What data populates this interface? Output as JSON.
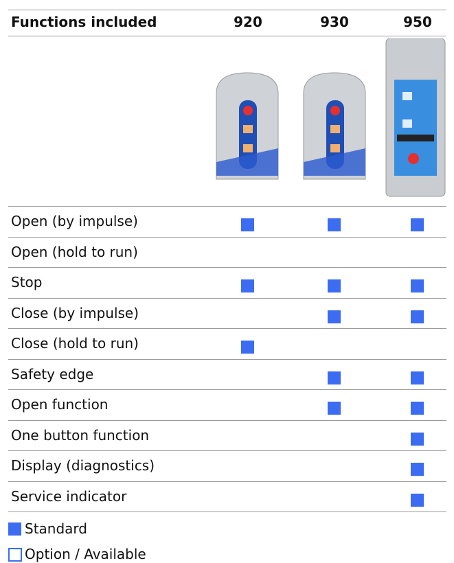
{
  "header": {
    "title": "Functions included",
    "models": [
      "920",
      "930",
      "950"
    ]
  },
  "rows": [
    {
      "label": "Open (by impulse)",
      "standard": [
        true,
        true,
        true
      ]
    },
    {
      "label": "Open (hold to run)",
      "standard": [
        false,
        false,
        false
      ]
    },
    {
      "label": "Stop",
      "standard": [
        true,
        true,
        true
      ]
    },
    {
      "label": "Close (by impulse)",
      "standard": [
        false,
        true,
        true
      ]
    },
    {
      "label": "Close (hold to run)",
      "standard": [
        true,
        false,
        false
      ]
    },
    {
      "label": "Safety edge",
      "standard": [
        false,
        true,
        true
      ]
    },
    {
      "label": "Open function",
      "standard": [
        false,
        true,
        true
      ]
    },
    {
      "label": "One button function",
      "standard": [
        false,
        false,
        true
      ]
    },
    {
      "label": "Display (diagnostics)",
      "standard": [
        false,
        false,
        true
      ]
    },
    {
      "label": "Service indicator",
      "standard": [
        false,
        false,
        true
      ]
    }
  ],
  "legend": {
    "standard": "Standard",
    "option": "Option / Available"
  }
}
